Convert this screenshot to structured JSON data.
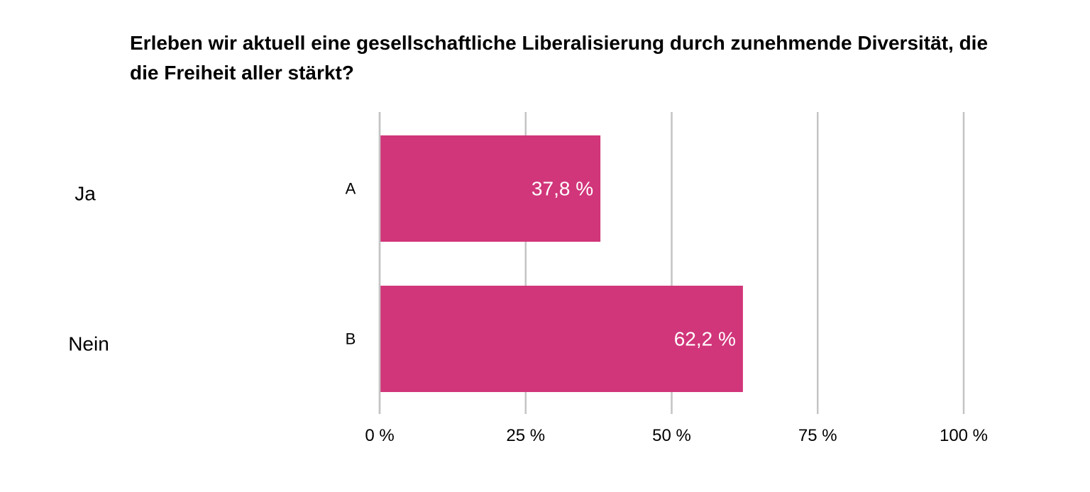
{
  "chart_data": {
    "type": "bar",
    "orientation": "horizontal",
    "title": "Erleben wir aktuell eine gesellschaftliche Liberalisierung durch zunehmende Diversität, die die Freiheit aller stärkt?",
    "categories": [
      "Ja",
      "Nein"
    ],
    "category_codes": [
      "A",
      "B"
    ],
    "values": [
      37.8,
      62.2
    ],
    "value_labels": [
      "37,8 %",
      "62,2 %"
    ],
    "xlim": [
      0,
      100
    ],
    "xticks": [
      0,
      25,
      50,
      75,
      100
    ],
    "xtick_labels": [
      "0 %",
      "25 %",
      "50 %",
      "75 %",
      "100 %"
    ],
    "xlabel": "",
    "ylabel": "",
    "grid": "vertical",
    "legend": "none",
    "bar_color": "#d1357a",
    "grid_color": "#c4c4c4",
    "label_color": "#ffffff"
  }
}
